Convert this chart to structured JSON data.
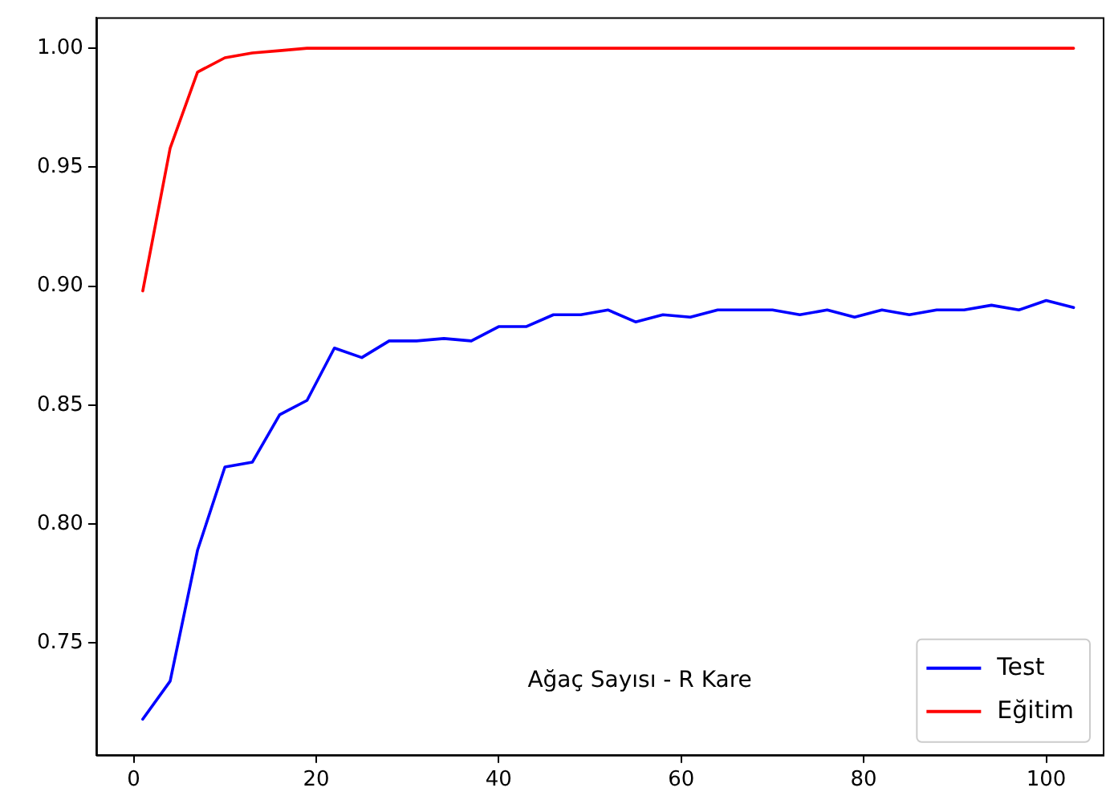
{
  "chart_data": {
    "type": "line",
    "annotations": [
      "Ağaç Sayısı - R Kare"
    ],
    "x": [
      1,
      4,
      7,
      10,
      13,
      16,
      19,
      22,
      25,
      28,
      31,
      34,
      37,
      40,
      43,
      46,
      49,
      52,
      55,
      58,
      61,
      64,
      67,
      70,
      73,
      76,
      79,
      82,
      85,
      88,
      91,
      94,
      97,
      100,
      103
    ],
    "series": [
      {
        "name": "Test",
        "color": "#0000ff",
        "values": [
          0.718,
          0.734,
          0.789,
          0.824,
          0.826,
          0.846,
          0.852,
          0.874,
          0.87,
          0.877,
          0.877,
          0.878,
          0.877,
          0.883,
          0.883,
          0.888,
          0.888,
          0.89,
          0.885,
          0.888,
          0.887,
          0.89,
          0.89,
          0.89,
          0.888,
          0.89,
          0.887,
          0.89,
          0.888,
          0.89,
          0.89,
          0.892,
          0.89,
          0.894,
          0.891
        ]
      },
      {
        "name": "Eğitim",
        "color": "#ff0000",
        "values": [
          0.898,
          0.958,
          0.99,
          0.996,
          0.998,
          0.999,
          1.0,
          1.0,
          1.0,
          1.0,
          1.0,
          1.0,
          1.0,
          1.0,
          1.0,
          1.0,
          1.0,
          1.0,
          1.0,
          1.0,
          1.0,
          1.0,
          1.0,
          1.0,
          1.0,
          1.0,
          1.0,
          1.0,
          1.0,
          1.0,
          1.0,
          1.0,
          1.0,
          1.0,
          1.0
        ]
      }
    ],
    "xlim": [
      -4.1,
      106.2
    ],
    "xticks": [
      0,
      20,
      40,
      60,
      80,
      100
    ],
    "ylim": [
      0.703,
      1.013
    ],
    "yticks": [
      {
        "value": 0.75,
        "label": "0.75"
      },
      {
        "value": 0.8,
        "label": "0.80"
      },
      {
        "value": 0.85,
        "label": "0.85"
      },
      {
        "value": 0.9,
        "label": "0.90"
      },
      {
        "value": 0.95,
        "label": "0.95"
      },
      {
        "value": 1,
        "label": "1.00"
      }
    ],
    "grid": false,
    "legend": "bottom right",
    "marker": "none",
    "line_style": "solid"
  }
}
